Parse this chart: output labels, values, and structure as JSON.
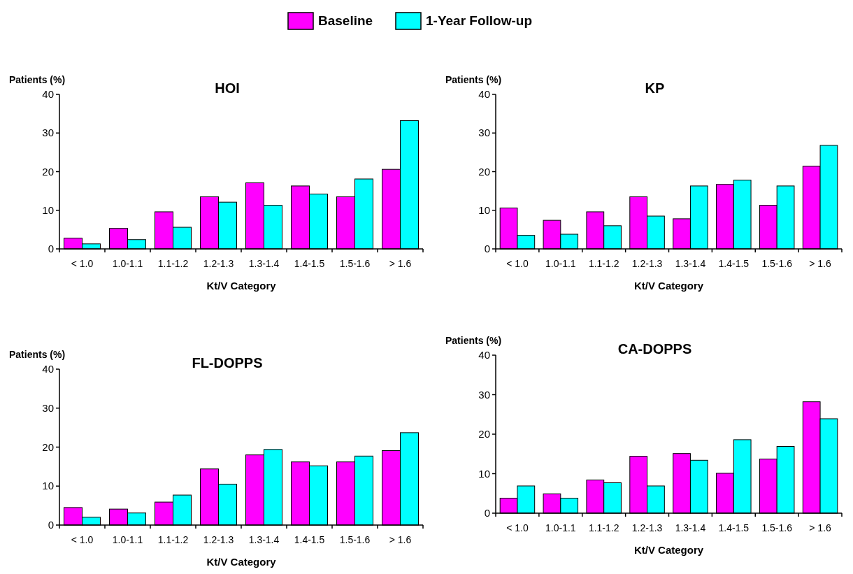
{
  "chart_data": [
    {
      "type": "bar",
      "title": "HOI",
      "xlabel": "Kt/V Category",
      "ylabel": "Patients (%)",
      "categories": [
        "< 1.0",
        "1.0-1.1",
        "1.1-1.2",
        "1.2-1.3",
        "1.3-1.4",
        "1.4-1.5",
        "1.5-1.6",
        "> 1.6"
      ],
      "ylim": [
        0,
        40
      ],
      "yticks": [
        0,
        10,
        20,
        30,
        40
      ],
      "legend": "top",
      "series": [
        {
          "name": "Baseline",
          "color": "#ff00ff",
          "values": [
            2.8,
            5.3,
            9.6,
            13.5,
            17.1,
            16.3,
            13.5,
            20.6
          ]
        },
        {
          "name": "1-Year Follow-up",
          "color": "#00ffff",
          "values": [
            1.3,
            2.4,
            5.6,
            12.1,
            11.3,
            14.2,
            18.1,
            33.2
          ]
        }
      ]
    },
    {
      "type": "bar",
      "title": "KP",
      "xlabel": "Kt/V Category",
      "ylabel": "Patients (%)",
      "categories": [
        "< 1.0",
        "1.0-1.1",
        "1.1-1.2",
        "1.2-1.3",
        "1.3-1.4",
        "1.4-1.5",
        "1.5-1.6",
        "> 1.6"
      ],
      "ylim": [
        0,
        40
      ],
      "yticks": [
        0,
        10,
        20,
        30,
        40
      ],
      "series": [
        {
          "color": "#ff00ff",
          "values": [
            10.6,
            7.4,
            9.6,
            13.5,
            7.8,
            16.7,
            11.3,
            21.4
          ]
        },
        {
          "color": "#00ffff",
          "values": [
            3.5,
            3.8,
            6.0,
            8.5,
            16.3,
            17.8,
            16.3,
            26.8
          ]
        }
      ]
    },
    {
      "type": "bar",
      "title": "FL-DOPPS",
      "xlabel": "Kt/V Category",
      "ylabel": "Patients (%)",
      "categories": [
        "< 1.0",
        "1.0-1.1",
        "1.1-1.2",
        "1.2-1.3",
        "1.3-1.4",
        "1.4-1.5",
        "1.5-1.6",
        "> 1.6"
      ],
      "ylim": [
        0,
        40
      ],
      "yticks": [
        0,
        10,
        20,
        30,
        40
      ],
      "series": [
        {
          "color": "#ff00ff",
          "values": [
            4.5,
            4.1,
            5.9,
            14.4,
            18.0,
            16.2,
            16.2,
            19.1
          ]
        },
        {
          "color": "#00ffff",
          "values": [
            2.0,
            3.1,
            7.7,
            10.5,
            19.4,
            15.2,
            17.7,
            23.7
          ]
        }
      ]
    },
    {
      "type": "bar",
      "title": "CA-DOPPS",
      "xlabel": "Kt/V Category",
      "ylabel": "Patients (%)",
      "categories": [
        "< 1.0",
        "1.0-1.1",
        "1.1-1.2",
        "1.2-1.3",
        "1.3-1.4",
        "1.4-1.5",
        "1.5-1.6",
        "> 1.6"
      ],
      "ylim": [
        0,
        40
      ],
      "yticks": [
        0,
        10,
        20,
        30,
        40
      ],
      "series": [
        {
          "color": "#ff00ff",
          "values": [
            3.8,
            4.9,
            8.4,
            14.4,
            15.1,
            10.1,
            13.7,
            28.2
          ]
        },
        {
          "color": "#00ffff",
          "values": [
            6.9,
            3.8,
            7.7,
            6.9,
            13.4,
            18.6,
            16.9,
            23.9
          ]
        }
      ]
    }
  ]
}
